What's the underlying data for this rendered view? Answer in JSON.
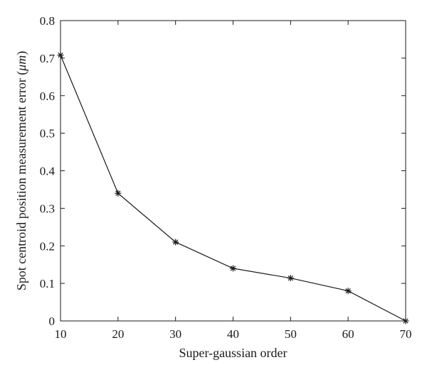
{
  "chart_data": {
    "type": "line",
    "title": "",
    "xlabel": "Super-gaussian order",
    "ylabel": "Spot centroid position measurement error (",
    "ylabel_unit": "μm",
    "ylabel_suffix": ")",
    "xlim": [
      10,
      70
    ],
    "ylim": [
      0,
      0.8
    ],
    "x_ticks": [
      10,
      20,
      30,
      40,
      50,
      60,
      70
    ],
    "x_tick_labels": [
      "10",
      "20",
      "30",
      "40",
      "50",
      "60",
      "70"
    ],
    "y_ticks": [
      0,
      0.1,
      0.2,
      0.3,
      0.4,
      0.5,
      0.6,
      0.7,
      0.8
    ],
    "y_tick_labels": [
      "0",
      "0.1",
      "0.2",
      "0.3",
      "0.4",
      "0.5",
      "0.6",
      "0.7",
      "0.8"
    ],
    "grid": false,
    "legend": "none",
    "marker": "asterisk",
    "line_color": "#1a1a1a",
    "series": [
      {
        "x": [
          10,
          20,
          30,
          40,
          50,
          60,
          70
        ],
        "y": [
          0.708,
          0.34,
          0.21,
          0.14,
          0.114,
          0.08,
          0.0
        ]
      }
    ]
  }
}
